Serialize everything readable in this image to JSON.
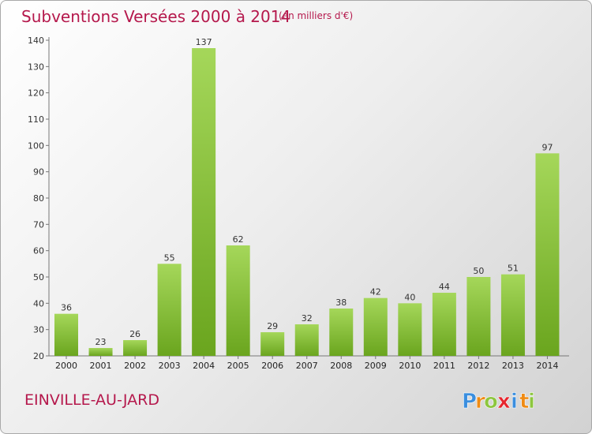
{
  "chart_data": {
    "type": "bar",
    "title": "Subventions Versées 2000 à 2014",
    "subtitle": "(en milliers d'€)",
    "categories": [
      "2000",
      "2001",
      "2002",
      "2003",
      "2004",
      "2005",
      "2006",
      "2007",
      "2008",
      "2009",
      "2010",
      "2011",
      "2012",
      "2013",
      "2014"
    ],
    "values": [
      36,
      23,
      26,
      55,
      137,
      62,
      29,
      32,
      38,
      42,
      40,
      44,
      50,
      51,
      97
    ],
    "ylim": [
      20,
      140
    ],
    "yticks": [
      20,
      30,
      40,
      50,
      60,
      70,
      80,
      90,
      100,
      110,
      120,
      130,
      140
    ],
    "grid": false,
    "bar_color_top": "#a5d75a",
    "bar_color_bottom": "#6aa51e"
  },
  "place": "EINVILLE-AU-JARD",
  "logo": {
    "letters": [
      "P",
      "r",
      "o",
      "x",
      "i",
      "t",
      "i"
    ],
    "colors": [
      "#3a8ede",
      "#ef8b14",
      "#8dc63f",
      "#e6262e",
      "#3a8ede",
      "#ef8b14",
      "#8dc63f"
    ]
  }
}
